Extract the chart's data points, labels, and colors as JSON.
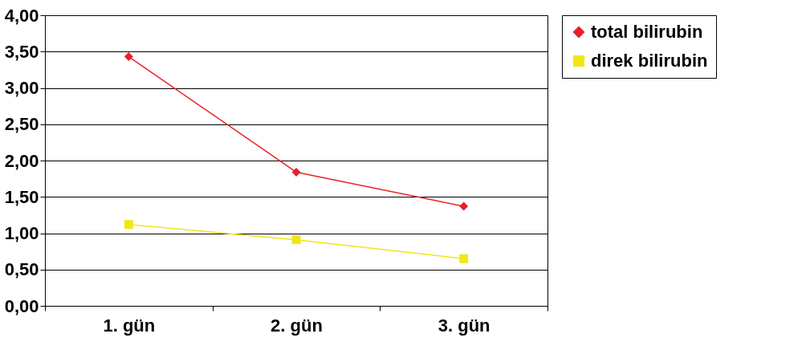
{
  "chart_data": {
    "type": "line",
    "categories": [
      "1. gün",
      "2. gün",
      "3. gün"
    ],
    "series": [
      {
        "name": "total bilirubin",
        "color": "#e8202a",
        "marker": "diamond",
        "values": [
          3.43,
          1.84,
          1.37
        ]
      },
      {
        "name": "direk bilirubin",
        "color": "#f0e619",
        "marker": "square",
        "values": [
          1.12,
          0.91,
          0.65
        ]
      }
    ],
    "ylim": [
      0,
      4
    ],
    "yticks": [
      {
        "value": 0,
        "label": "0,00"
      },
      {
        "value": 0.5,
        "label": "0,50"
      },
      {
        "value": 1,
        "label": "1,00"
      },
      {
        "value": 1.5,
        "label": "1,50"
      },
      {
        "value": 2,
        "label": "2,00"
      },
      {
        "value": 2.5,
        "label": "2,50"
      },
      {
        "value": 3,
        "label": "3,00"
      },
      {
        "value": 3.5,
        "label": "3,50"
      },
      {
        "value": 4,
        "label": "4,00"
      }
    ],
    "grid": "y",
    "legend": "right"
  }
}
